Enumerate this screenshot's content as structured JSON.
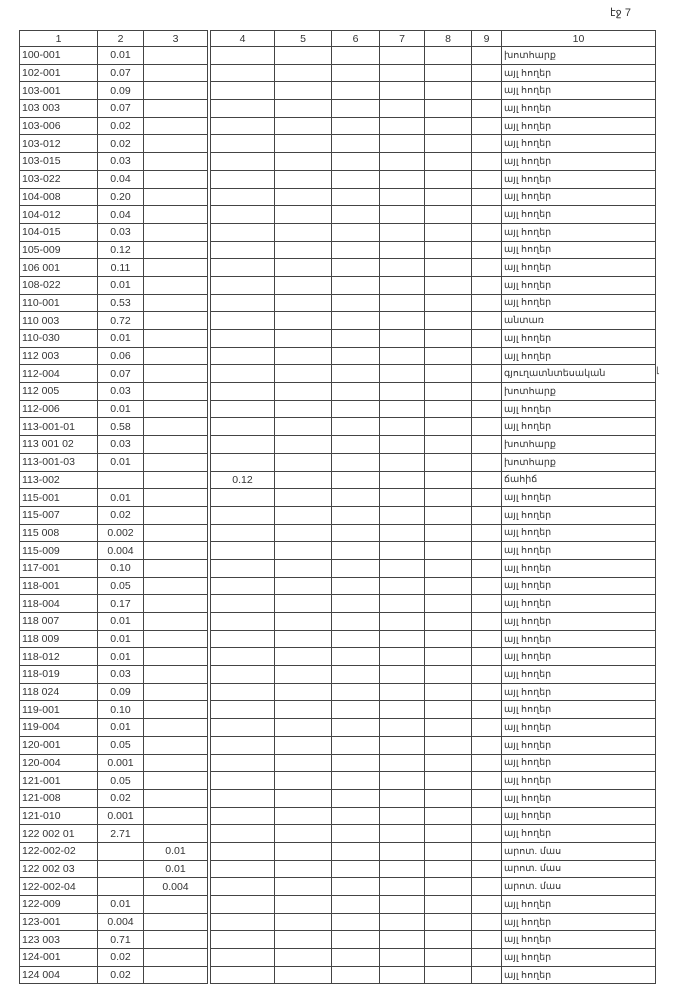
{
  "page_label": "էջ 7",
  "side_mark": "լ",
  "headers": [
    "1",
    "2",
    "3",
    "4",
    "5",
    "6",
    "7",
    "8",
    "9",
    "10"
  ],
  "rows": [
    [
      "100-001",
      "0.01",
      "",
      "",
      "",
      "",
      "",
      "",
      "",
      "խոտհարք"
    ],
    [
      "102-001",
      "0.07",
      "",
      "",
      "",
      "",
      "",
      "",
      "",
      "այլ հողեր"
    ],
    [
      "103-001",
      "0.09",
      "",
      "",
      "",
      "",
      "",
      "",
      "",
      "այլ հողեր"
    ],
    [
      "103 003",
      "0.07",
      "",
      "",
      "",
      "",
      "",
      "",
      "",
      "այլ հողեր"
    ],
    [
      "103-006",
      "0.02",
      "",
      "",
      "",
      "",
      "",
      "",
      "",
      "այլ հողեր"
    ],
    [
      "103-012",
      "0.02",
      "",
      "",
      "",
      "",
      "",
      "",
      "",
      "այլ հողեր"
    ],
    [
      "103-015",
      "0.03",
      "",
      "",
      "",
      "",
      "",
      "",
      "",
      "այլ հողեր"
    ],
    [
      "103-022",
      "0.04",
      "",
      "",
      "",
      "",
      "",
      "",
      "",
      "այլ հողեր"
    ],
    [
      "104-008",
      "0.20",
      "",
      "",
      "",
      "",
      "",
      "",
      "",
      "այլ հողեր"
    ],
    [
      "104-012",
      "0.04",
      "",
      "",
      "",
      "",
      "",
      "",
      "",
      "այլ հողեր"
    ],
    [
      "104-015",
      "0.03",
      "",
      "",
      "",
      "",
      "",
      "",
      "",
      "այլ հողեր"
    ],
    [
      "105-009",
      "0.12",
      "",
      "",
      "",
      "",
      "",
      "",
      "",
      "այլ հողեր"
    ],
    [
      "106 001",
      "0.11",
      "",
      "",
      "",
      "",
      "",
      "",
      "",
      "այլ հողեր"
    ],
    [
      "108-022",
      "0.01",
      "",
      "",
      "",
      "",
      "",
      "",
      "",
      "այլ հողեր"
    ],
    [
      "110-001",
      "0.53",
      "",
      "",
      "",
      "",
      "",
      "",
      "",
      "այլ հողեր"
    ],
    [
      "110 003",
      "0.72",
      "",
      "",
      "",
      "",
      "",
      "",
      "",
      "անտառ"
    ],
    [
      "110-030",
      "0.01",
      "",
      "",
      "",
      "",
      "",
      "",
      "",
      "այլ հողեր"
    ],
    [
      "112 003",
      "0.06",
      "",
      "",
      "",
      "",
      "",
      "",
      "",
      "այլ հողեր"
    ],
    [
      "112-004",
      "0.07",
      "",
      "",
      "",
      "",
      "",
      "",
      "",
      "գյուղատնտեսական"
    ],
    [
      "112 005",
      "0.03",
      "",
      "",
      "",
      "",
      "",
      "",
      "",
      "խոտհարք"
    ],
    [
      "112-006",
      "0.01",
      "",
      "",
      "",
      "",
      "",
      "",
      "",
      "այլ հողեր"
    ],
    [
      "113-001-01",
      "0.58",
      "",
      "",
      "",
      "",
      "",
      "",
      "",
      "այլ հողեր"
    ],
    [
      "113 001 02",
      "0.03",
      "",
      "",
      "",
      "",
      "",
      "",
      "",
      "խոտհարք"
    ],
    [
      "113-001-03",
      "0.01",
      "",
      "",
      "",
      "",
      "",
      "",
      "",
      "խոտհարք"
    ],
    [
      "113-002",
      "",
      "",
      "0.12",
      "",
      "",
      "",
      "",
      "",
      "ճահիճ"
    ],
    [
      "115-001",
      "0.01",
      "",
      "",
      "",
      "",
      "",
      "",
      "",
      "այլ հողեր"
    ],
    [
      "115-007",
      "0.02",
      "",
      "",
      "",
      "",
      "",
      "",
      "",
      "այլ հողեր"
    ],
    [
      "115 008",
      "0.002",
      "",
      "",
      "",
      "",
      "",
      "",
      "",
      "այլ հողեր"
    ],
    [
      "115-009",
      "0.004",
      "",
      "",
      "",
      "",
      "",
      "",
      "",
      "այլ հողեր"
    ],
    [
      "117-001",
      "0.10",
      "",
      "",
      "",
      "",
      "",
      "",
      "",
      "այլ հողեր"
    ],
    [
      "118-001",
      "0.05",
      "",
      "",
      "",
      "",
      "",
      "",
      "",
      "այլ հողեր"
    ],
    [
      "118-004",
      "0.17",
      "",
      "",
      "",
      "",
      "",
      "",
      "",
      "այլ հողեր"
    ],
    [
      "118 007",
      "0.01",
      "",
      "",
      "",
      "",
      "",
      "",
      "",
      "այլ հողեր"
    ],
    [
      "118 009",
      "0.01",
      "",
      "",
      "",
      "",
      "",
      "",
      "",
      "այլ հողեր"
    ],
    [
      "118-012",
      "0.01",
      "",
      "",
      "",
      "",
      "",
      "",
      "",
      "այլ հողեր"
    ],
    [
      "118-019",
      "0.03",
      "",
      "",
      "",
      "",
      "",
      "",
      "",
      "այլ հողեր"
    ],
    [
      "118 024",
      "0.09",
      "",
      "",
      "",
      "",
      "",
      "",
      "",
      "այլ հողեր"
    ],
    [
      "119-001",
      "0.10",
      "",
      "",
      "",
      "",
      "",
      "",
      "",
      "այլ հողեր"
    ],
    [
      "119-004",
      "0.01",
      "",
      "",
      "",
      "",
      "",
      "",
      "",
      "այլ հողեր"
    ],
    [
      "120-001",
      "0.05",
      "",
      "",
      "",
      "",
      "",
      "",
      "",
      "այլ հողեր"
    ],
    [
      "120-004",
      "0.001",
      "",
      "",
      "",
      "",
      "",
      "",
      "",
      "այլ հողեր"
    ],
    [
      "121-001",
      "0.05",
      "",
      "",
      "",
      "",
      "",
      "",
      "",
      "այլ հողեր"
    ],
    [
      "121-008",
      "0.02",
      "",
      "",
      "",
      "",
      "",
      "",
      "",
      "այլ հողեր"
    ],
    [
      "121-010",
      "0.001",
      "",
      "",
      "",
      "",
      "",
      "",
      "",
      "այլ հողեր"
    ],
    [
      "122 002 01",
      "2.71",
      "",
      "",
      "",
      "",
      "",
      "",
      "",
      "այլ հողեր"
    ],
    [
      "122-002-02",
      "",
      "0.01",
      "",
      "",
      "",
      "",
      "",
      "",
      "արոտ. մաս"
    ],
    [
      "122 002 03",
      "",
      "0.01",
      "",
      "",
      "",
      "",
      "",
      "",
      "արոտ. մաս"
    ],
    [
      "122-002-04",
      "",
      "0.004",
      "",
      "",
      "",
      "",
      "",
      "",
      "արոտ. մաս"
    ],
    [
      "122-009",
      "0.01",
      "",
      "",
      "",
      "",
      "",
      "",
      "",
      "այլ հողեր"
    ],
    [
      "123-001",
      "0.004",
      "",
      "",
      "",
      "",
      "",
      "",
      "",
      "այլ հողեր"
    ],
    [
      "123 003",
      "0.71",
      "",
      "",
      "",
      "",
      "",
      "",
      "",
      "այլ հողեր"
    ],
    [
      "124-001",
      "0.02",
      "",
      "",
      "",
      "",
      "",
      "",
      "",
      "այլ հողեր"
    ],
    [
      "124 004",
      "0.02",
      "",
      "",
      "",
      "",
      "",
      "",
      "",
      "այլ հողեր"
    ]
  ]
}
